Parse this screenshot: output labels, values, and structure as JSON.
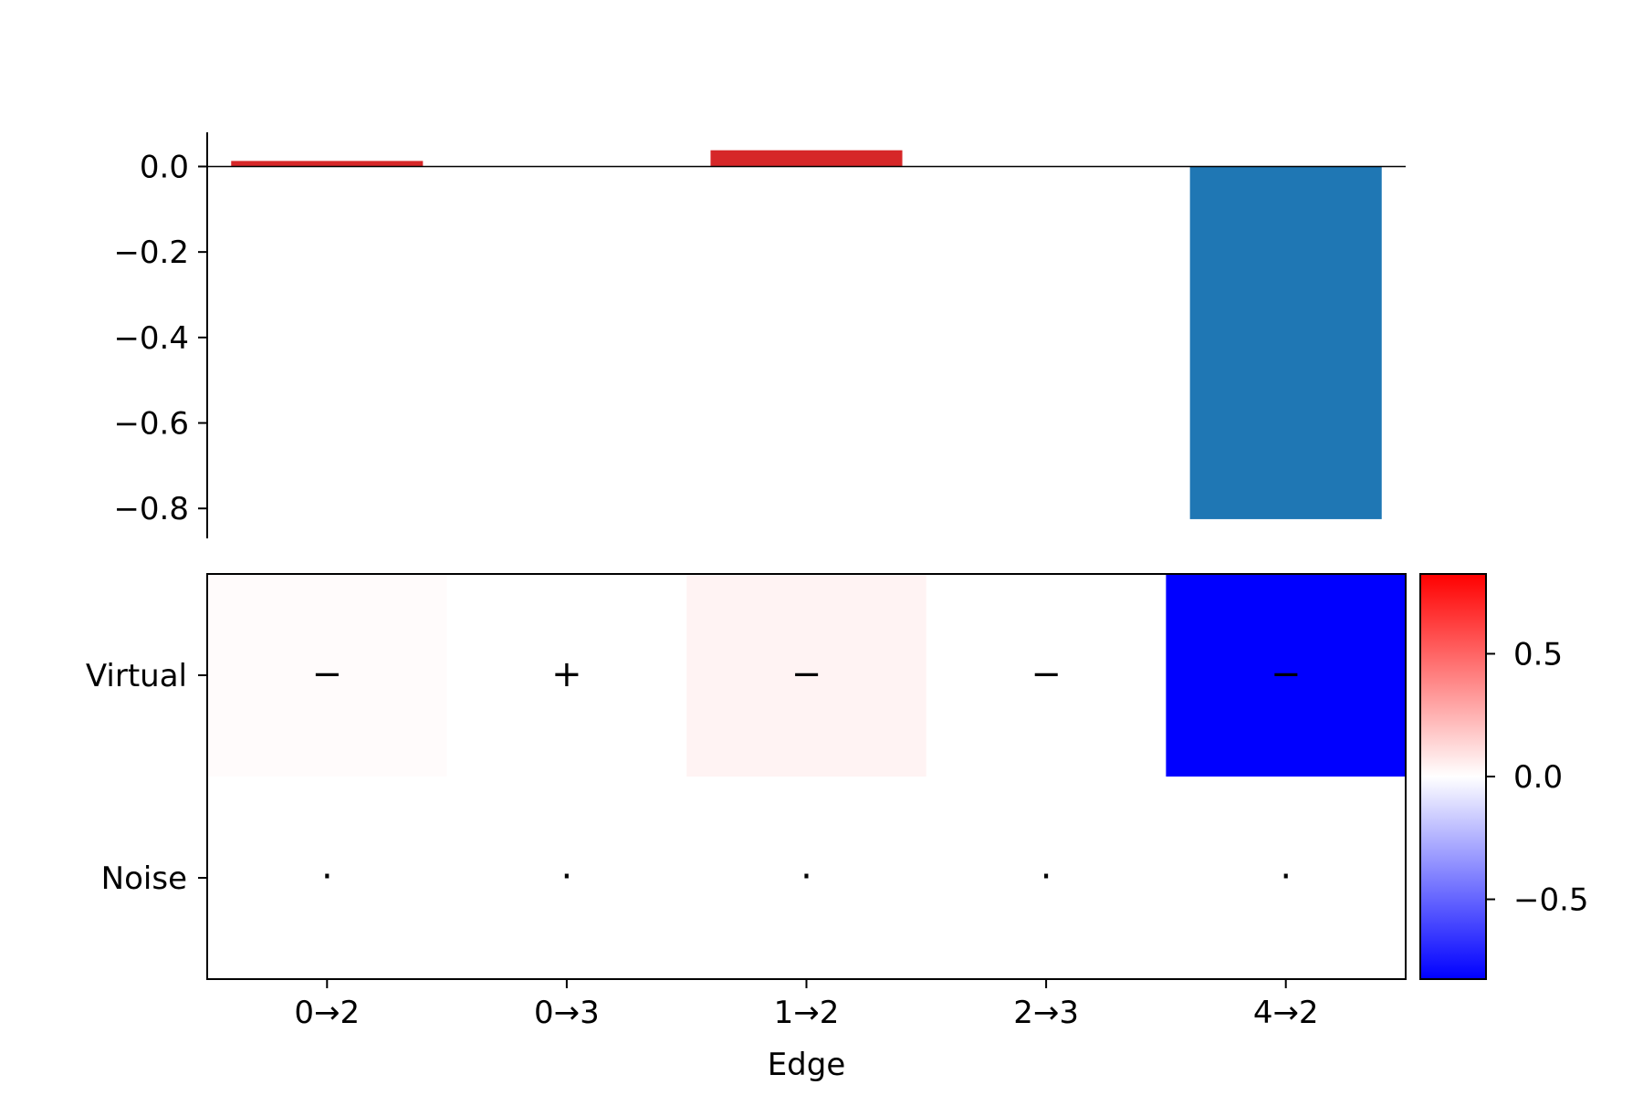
{
  "chart_data": [
    {
      "type": "bar",
      "categories": [
        "0→2",
        "0→3",
        "1→2",
        "2→3",
        "4→2"
      ],
      "values": [
        0.013,
        0.0,
        0.038,
        0.0,
        -0.825
      ],
      "positive_color": "#d62728",
      "negative_color": "#1f77b4",
      "ylim": [
        -0.87,
        0.08
      ],
      "yticks": [
        0.0,
        -0.2,
        -0.4,
        -0.6,
        -0.8
      ],
      "ytick_labels": [
        "0.0",
        "−0.2",
        "−0.4",
        "−0.6",
        "−0.8"
      ],
      "zero_line": true
    },
    {
      "type": "heatmap",
      "rows": [
        "Virtual",
        "Noise"
      ],
      "columns": [
        "0→2",
        "0→3",
        "1→2",
        "2→3",
        "4→2"
      ],
      "values": [
        [
          0.013,
          0.0,
          0.038,
          0.0,
          -0.825
        ],
        [
          0.0,
          0.0,
          0.0,
          0.0,
          0.0
        ]
      ],
      "cell_symbols": [
        [
          "−",
          "+",
          "−",
          "−",
          "−"
        ],
        [
          "·",
          "·",
          "·",
          "·",
          "·"
        ]
      ],
      "xlabel": "Edge",
      "colormap": "bwr",
      "colorbar": {
        "vmin": -0.825,
        "vmax": 0.825,
        "ticks": [
          0.5,
          0.0,
          -0.5
        ],
        "tick_labels": [
          "0.5",
          "0.0",
          "−0.5"
        ],
        "colors": [
          "#0000ff",
          "#ffffff",
          "#ff0000"
        ]
      }
    }
  ]
}
